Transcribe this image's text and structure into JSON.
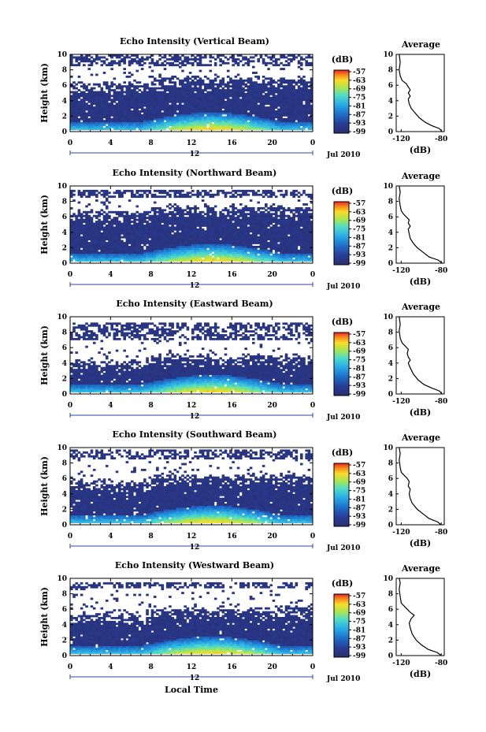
{
  "chart_data": [
    {
      "type": "heatmap",
      "title": "Echo Intensity (Vertical Beam)",
      "ylabel": "Height (km)",
      "xticks": [
        "0",
        "4",
        "8",
        "12",
        "16",
        "20",
        "0"
      ],
      "yticks": [
        "0",
        "2",
        "4",
        "6",
        "8",
        "10"
      ],
      "xlim": [
        0,
        24
      ],
      "ylim": [
        0,
        10
      ],
      "date_label": "12",
      "month_label": "Jul 2010",
      "colorbar": {
        "unit": "(dB)",
        "ticks": [
          "-57",
          "-63",
          "-69",
          "-75",
          "-81",
          "-87",
          "-93",
          "-99"
        ]
      },
      "profile": {
        "title": "Average",
        "xlabel": "(dB)",
        "xticks": [
          "-120",
          "-80"
        ],
        "yticks": [
          "0",
          "2",
          "4",
          "6",
          "8",
          "10"
        ],
        "xlim": [
          -125,
          -77
        ],
        "ylim": [
          0,
          10
        ],
        "points": [
          [
            -79,
            0
          ],
          [
            -82,
            0.4
          ],
          [
            -90,
            0.8
          ],
          [
            -96,
            1.2
          ],
          [
            -102,
            1.8
          ],
          [
            -106,
            2.4
          ],
          [
            -110,
            3.0
          ],
          [
            -112,
            3.6
          ],
          [
            -113,
            4.2
          ],
          [
            -111,
            4.6
          ],
          [
            -113,
            5.0
          ],
          [
            -111,
            5.4
          ],
          [
            -113,
            5.8
          ],
          [
            -115,
            6.2
          ],
          [
            -119,
            6.6
          ],
          [
            -121,
            7.2
          ],
          [
            -122,
            8.0
          ],
          [
            -121,
            9.0
          ],
          [
            -122,
            10
          ]
        ]
      },
      "bands": [
        0.2,
        6.6,
        8.6,
        9.9
      ]
    },
    {
      "type": "heatmap",
      "title": "Echo Intensity (Northward Beam)",
      "ylabel": "Height (km)",
      "xticks": [
        "0",
        "4",
        "8",
        "12",
        "16",
        "20",
        "0"
      ],
      "yticks": [
        "0",
        "2",
        "4",
        "6",
        "8",
        "10"
      ],
      "xlim": [
        0,
        24
      ],
      "ylim": [
        0,
        10
      ],
      "date_label": "12",
      "month_label": "Jul 2010",
      "colorbar": {
        "unit": "(dB)",
        "ticks": [
          "-57",
          "-63",
          "-69",
          "-75",
          "-81",
          "-87",
          "-93",
          "-99"
        ]
      },
      "profile": {
        "title": "Average",
        "xlabel": "(dB)",
        "xticks": [
          "-120",
          "-80"
        ],
        "yticks": [
          "0",
          "2",
          "4",
          "6",
          "8",
          "10"
        ],
        "xlim": [
          -125,
          -77
        ],
        "ylim": [
          0,
          10
        ],
        "points": [
          [
            -79,
            0
          ],
          [
            -83,
            0.4
          ],
          [
            -92,
            0.8
          ],
          [
            -98,
            1.4
          ],
          [
            -104,
            2.0
          ],
          [
            -108,
            2.6
          ],
          [
            -111,
            3.2
          ],
          [
            -112,
            3.8
          ],
          [
            -113,
            4.4
          ],
          [
            -111,
            4.8
          ],
          [
            -113,
            5.2
          ],
          [
            -112,
            5.6
          ],
          [
            -115,
            6.0
          ],
          [
            -118,
            6.4
          ],
          [
            -120,
            6.8
          ],
          [
            -121,
            7.4
          ],
          [
            -122,
            8.4
          ],
          [
            -121,
            9.2
          ],
          [
            -122,
            10
          ]
        ]
      },
      "bands": [
        0.2,
        7.0,
        8.4,
        9.6
      ]
    },
    {
      "type": "heatmap",
      "title": "Echo Intensity (Eastward Beam)",
      "ylabel": "Height (km)",
      "xticks": [
        "0",
        "4",
        "8",
        "12",
        "16",
        "20",
        "0"
      ],
      "yticks": [
        "0",
        "2",
        "4",
        "6",
        "8",
        "10"
      ],
      "xlim": [
        0,
        24
      ],
      "ylim": [
        0,
        10
      ],
      "date_label": "12",
      "month_label": "Jul 2010",
      "colorbar": {
        "unit": "(dB)",
        "ticks": [
          "-57",
          "-63",
          "-69",
          "-75",
          "-81",
          "-87",
          "-93",
          "-99"
        ]
      },
      "profile": {
        "title": "Average",
        "xlabel": "(dB)",
        "xticks": [
          "-120",
          "-80"
        ],
        "yticks": [
          "0",
          "2",
          "4",
          "6",
          "8",
          "10"
        ],
        "xlim": [
          -125,
          -77
        ],
        "ylim": [
          0,
          10
        ],
        "points": [
          [
            -79,
            0
          ],
          [
            -82,
            0.4
          ],
          [
            -90,
            0.8
          ],
          [
            -97,
            1.2
          ],
          [
            -103,
            1.8
          ],
          [
            -108,
            2.6
          ],
          [
            -111,
            3.4
          ],
          [
            -113,
            4.0
          ],
          [
            -111,
            4.4
          ],
          [
            -113,
            4.8
          ],
          [
            -114,
            5.2
          ],
          [
            -113,
            5.8
          ],
          [
            -116,
            6.2
          ],
          [
            -119,
            6.6
          ],
          [
            -121,
            7.2
          ],
          [
            -122,
            8.2
          ],
          [
            -121,
            9.0
          ],
          [
            -122,
            10
          ]
        ]
      },
      "bands": [
        0.2,
        4.6,
        7.0,
        9.3
      ]
    },
    {
      "type": "heatmap",
      "title": "Echo Intensity (Southward Beam)",
      "ylabel": "Height (km)",
      "xticks": [
        "0",
        "4",
        "8",
        "12",
        "16",
        "20",
        "0"
      ],
      "yticks": [
        "0",
        "2",
        "4",
        "6",
        "8",
        "10"
      ],
      "xlim": [
        0,
        24
      ],
      "ylim": [
        0,
        10
      ],
      "date_label": "12",
      "month_label": "Jul 2010",
      "colorbar": {
        "unit": "(dB)",
        "ticks": [
          "-57",
          "-63",
          "-69",
          "-75",
          "-81",
          "-87",
          "-93",
          "-99"
        ]
      },
      "profile": {
        "title": "Average",
        "xlabel": "(dB)",
        "xticks": [
          "-120",
          "-80"
        ],
        "yticks": [
          "0",
          "2",
          "4",
          "6",
          "8",
          "10"
        ],
        "xlim": [
          -125,
          -77
        ],
        "ylim": [
          0,
          10
        ],
        "points": [
          [
            -80,
            0
          ],
          [
            -84,
            0.4
          ],
          [
            -92,
            0.8
          ],
          [
            -98,
            1.4
          ],
          [
            -104,
            2.0
          ],
          [
            -109,
            2.8
          ],
          [
            -111,
            3.4
          ],
          [
            -112,
            4.0
          ],
          [
            -111,
            4.6
          ],
          [
            -113,
            5.0
          ],
          [
            -112,
            5.6
          ],
          [
            -114,
            6.0
          ],
          [
            -117,
            6.4
          ],
          [
            -120,
            6.8
          ],
          [
            -121,
            7.4
          ],
          [
            -122,
            8.4
          ],
          [
            -121,
            9.2
          ],
          [
            -122,
            10
          ]
        ]
      },
      "bands": [
        0.2,
        6.0,
        8.6,
        9.7
      ]
    },
    {
      "type": "heatmap",
      "title": "Echo Intensity (Westward Beam)",
      "ylabel": "Height (km)",
      "xticks": [
        "0",
        "4",
        "8",
        "12",
        "16",
        "20",
        "0"
      ],
      "yticks": [
        "0",
        "2",
        "4",
        "6",
        "8",
        "10"
      ],
      "xlim": [
        0,
        24
      ],
      "ylim": [
        0,
        10
      ],
      "date_label": "12",
      "month_label": "Jul 2010",
      "colorbar": {
        "unit": "(dB)",
        "ticks": [
          "-57",
          "-63",
          "-69",
          "-75",
          "-81",
          "-87",
          "-93",
          "-99"
        ]
      },
      "profile": {
        "title": "Average",
        "xlabel": "(dB)",
        "xticks": [
          "-120",
          "-80"
        ],
        "yticks": [
          "0",
          "2",
          "4",
          "6",
          "8",
          "10"
        ],
        "xlim": [
          -125,
          -77
        ],
        "ylim": [
          0,
          10
        ],
        "points": [
          [
            -80,
            0
          ],
          [
            -84,
            0.4
          ],
          [
            -93,
            0.8
          ],
          [
            -100,
            1.4
          ],
          [
            -105,
            2.0
          ],
          [
            -109,
            2.8
          ],
          [
            -111,
            3.6
          ],
          [
            -112,
            4.2
          ],
          [
            -110,
            4.8
          ],
          [
            -107,
            5.2
          ],
          [
            -111,
            5.6
          ],
          [
            -114,
            6.0
          ],
          [
            -117,
            6.4
          ],
          [
            -120,
            6.8
          ],
          [
            -121,
            7.6
          ],
          [
            -122,
            8.6
          ],
          [
            -121,
            9.4
          ],
          [
            -122,
            10
          ]
        ]
      },
      "bands": [
        0.2,
        5.8,
        8.8,
        9.6
      ]
    }
  ],
  "xlabel": "Local Time"
}
